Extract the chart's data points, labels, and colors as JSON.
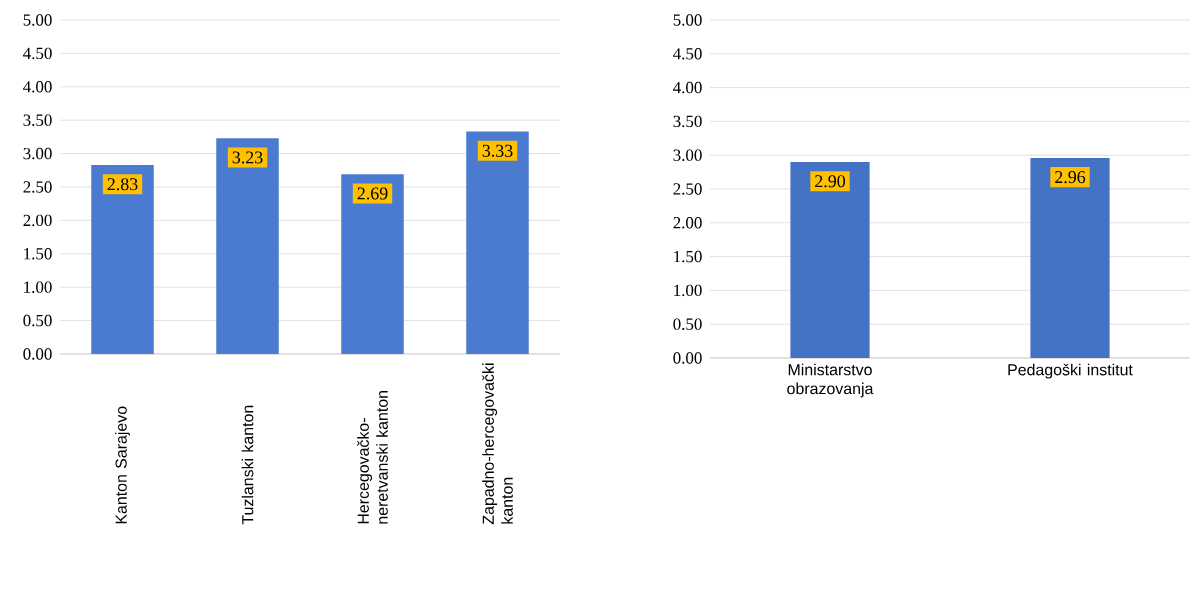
{
  "chart_data": [
    {
      "type": "bar",
      "categories": [
        "Kanton Sarajevo",
        "Tuzlanski kanton",
        "Hercegovačko-neretvanski kanton",
        "Zapadno-hercegovački kanton"
      ],
      "values": [
        2.83,
        3.23,
        2.69,
        3.33
      ],
      "value_labels": [
        "2.83",
        "3.23",
        "2.69",
        "3.33"
      ],
      "color": "#4a7bd0",
      "ylim": [
        0,
        5
      ],
      "yticks": [
        {
          "value": 0,
          "label": "0.00"
        },
        {
          "value": 0.5,
          "label": "0.50"
        },
        {
          "value": 1,
          "label": "1.00"
        },
        {
          "value": 1.5,
          "label": "1.50"
        },
        {
          "value": 2,
          "label": "2.00"
        },
        {
          "value": 2.5,
          "label": "2.50"
        },
        {
          "value": 3,
          "label": "3.00"
        },
        {
          "value": 3.5,
          "label": "3.50"
        },
        {
          "value": 4,
          "label": "4.00"
        },
        {
          "value": 4.5,
          "label": "4.50"
        },
        {
          "value": 5,
          "label": "5.00"
        }
      ],
      "grid": "y"
    },
    {
      "type": "bar",
      "categories": [
        "Ministarstvo obrazovanja",
        "Pedagoški institut"
      ],
      "values": [
        2.9,
        2.96
      ],
      "value_labels": [
        "2.90",
        "2.96"
      ],
      "color": "#4472c4",
      "ylim": [
        0,
        5
      ],
      "yticks": [
        {
          "value": 0,
          "label": "0.00"
        },
        {
          "value": 0.5,
          "label": "0.50"
        },
        {
          "value": 1,
          "label": "1.00"
        },
        {
          "value": 1.5,
          "label": "1.50"
        },
        {
          "value": 2,
          "label": "2.00"
        },
        {
          "value": 2.5,
          "label": "2.50"
        },
        {
          "value": 3,
          "label": "3.00"
        },
        {
          "value": 3.5,
          "label": "3.50"
        },
        {
          "value": 4,
          "label": "4.00"
        },
        {
          "value": 4.5,
          "label": "4.50"
        },
        {
          "value": 5,
          "label": "5.00"
        }
      ],
      "grid": "y"
    }
  ]
}
